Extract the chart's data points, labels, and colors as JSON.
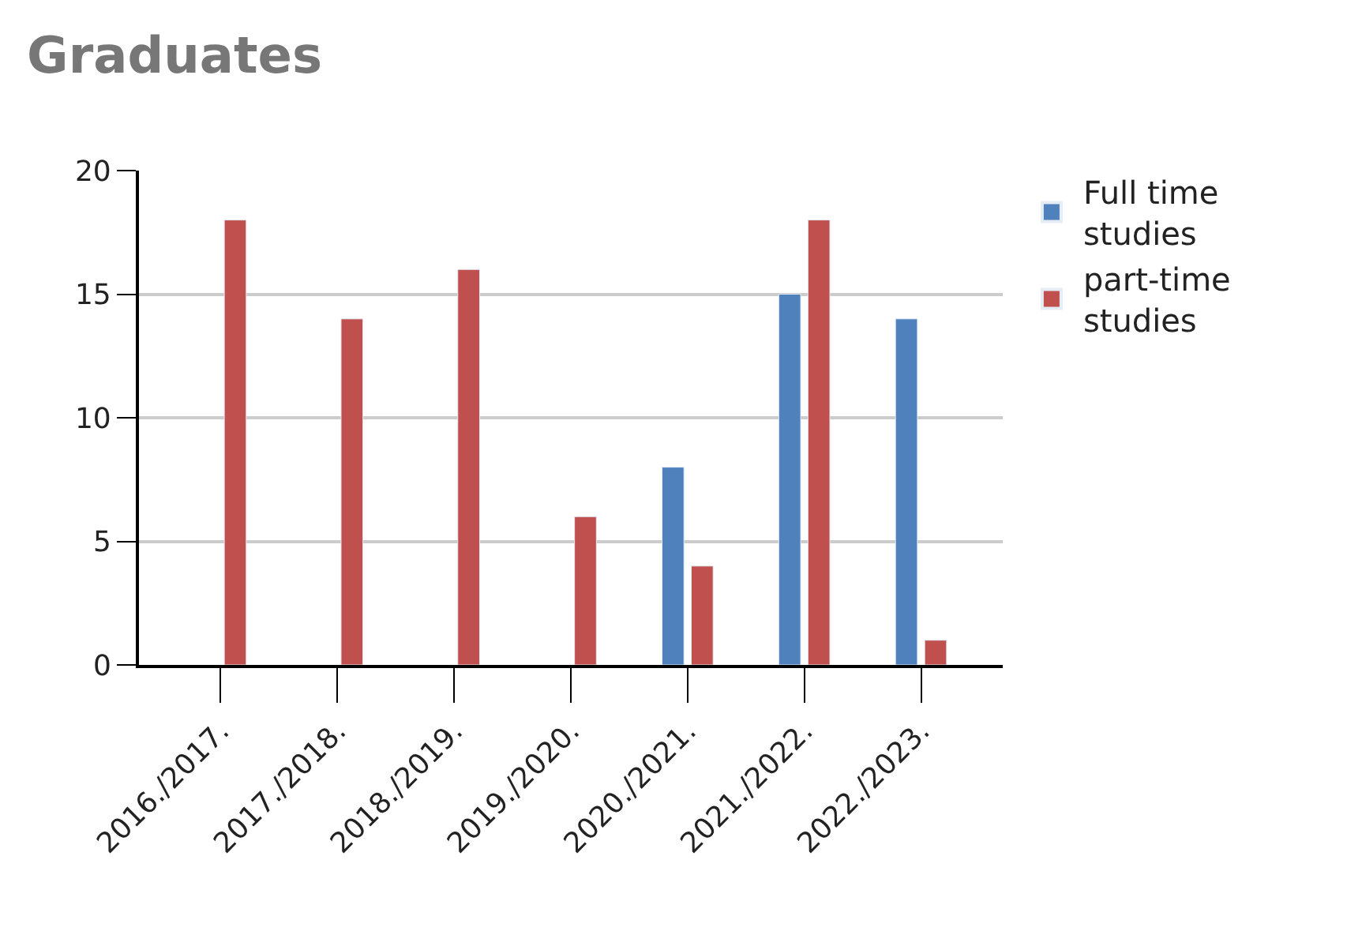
{
  "chart_data": {
    "type": "bar",
    "title": "Graduates",
    "categories": [
      "2016./2017.",
      "2017./2018.",
      "2018./2019.",
      "2019./2020.",
      "2020./2021.",
      "2021./2022.",
      "2022./2023."
    ],
    "series": [
      {
        "name": "Full time studies",
        "color": "#4f81bd",
        "values": [
          null,
          null,
          null,
          null,
          8,
          15,
          14
        ]
      },
      {
        "name": "part-time studies",
        "color": "#c0504d",
        "values": [
          18,
          14,
          16,
          6,
          4,
          18,
          1
        ]
      }
    ],
    "ylim": [
      0,
      20
    ],
    "yticks": [
      0,
      5,
      10,
      15,
      20
    ],
    "grid": "y",
    "legend": "top right"
  }
}
